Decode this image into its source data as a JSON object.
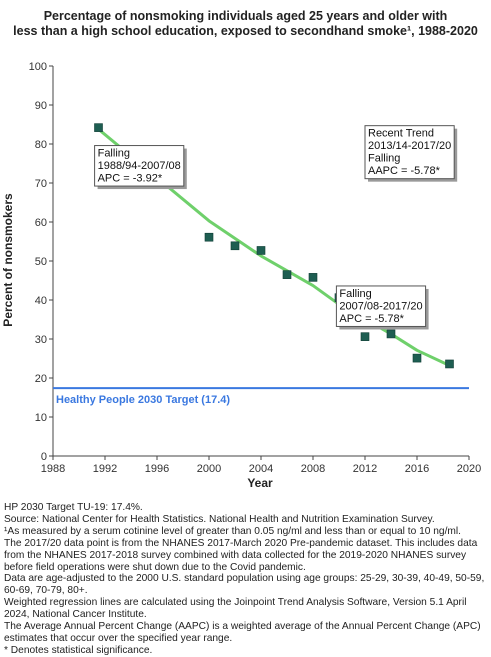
{
  "chart_data": {
    "type": "scatter",
    "title": "Percentage of nonsmoking individuals aged 25 years and older with less than a high school education, exposed to secondhand smoke¹, 1988-2020",
    "title_lines": [
      "Percentage of nonsmoking individuals aged 25 years and older with",
      "less than a high school education, exposed to secondhand smoke¹, 1988-2020"
    ],
    "xlabel": "Year",
    "ylabel": "Percent of nonsmokers",
    "xlim": [
      1988,
      2020
    ],
    "ylim": [
      0,
      100
    ],
    "xticks": [
      1988,
      1992,
      1996,
      2000,
      2004,
      2008,
      2012,
      2016,
      2020
    ],
    "yticks": [
      0,
      10,
      20,
      30,
      40,
      50,
      60,
      70,
      80,
      90,
      100
    ],
    "grid": false,
    "points": {
      "x": [
        1991.5,
        2000,
        2002,
        2004,
        2006,
        2008,
        2010,
        2012,
        2014,
        2016,
        2018.5
      ],
      "y": [
        84.2,
        56.1,
        53.9,
        52.7,
        46.5,
        45.8,
        40.6,
        30.6,
        31.3,
        25.1,
        23.6
      ],
      "color": "#1e5e52"
    },
    "trend": {
      "x": [
        1991.5,
        2000,
        2004,
        2008,
        2010,
        2014,
        2016,
        2018.5
      ],
      "y": [
        83.8,
        60.3,
        51.3,
        43.7,
        38.9,
        31.3,
        27.1,
        23.2
      ],
      "color": "#6fd06b"
    },
    "target": {
      "value": 17.4,
      "label": "Healthy People 2030 Target (17.4)",
      "color": "#3a78e0"
    },
    "annotations": [
      {
        "lines": [
          "Falling",
          "1988/94-2007/08",
          "APC = -3.92*"
        ],
        "x": 1991.2,
        "y": 79.6
      },
      {
        "lines": [
          "Falling",
          "2007/08-2017/20",
          "APC = -5.78*"
        ],
        "x": 2009.8,
        "y": 43.6
      },
      {
        "lines": [
          "Recent Trend",
          "2013/14-2017/20",
          "Falling",
          "AAPC = -5.78*"
        ],
        "x": 2012.0,
        "y": 84.7
      }
    ]
  },
  "notes": [
    "HP 2030 Target TU-19: 17.4%.",
    "Source: National Center for Health Statistics. National Health and Nutrition Examination Survey.",
    "¹As measured by a serum cotinine level of greater than 0.05 ng/ml and less than or equal to 10 ng/ml.",
    "The 2017/20 data point is from the NHANES 2017-March 2020 Pre-pandemic dataset. This includes data",
    "from the NHANES 2017-2018 survey combined with data collected for the 2019-2020 NHANES survey",
    "before field operations were shut down due to the Covid pandemic.",
    "Data are age-adjusted to the 2000 U.S. standard population using age groups: 25-29, 30-39, 40-49, 50-59,",
    "60-69, 70-79, 80+.",
    "Weighted regression lines are calculated using the Joinpoint Trend Analysis Software, Version 5.1 April",
    "2024, National Cancer Institute.",
    "The Average Annual Percent Change (AAPC) is a weighted average of the Annual Percent Change (APC)",
    "estimates that occur over the specified year range.",
    "* Denotes statistical significance."
  ]
}
